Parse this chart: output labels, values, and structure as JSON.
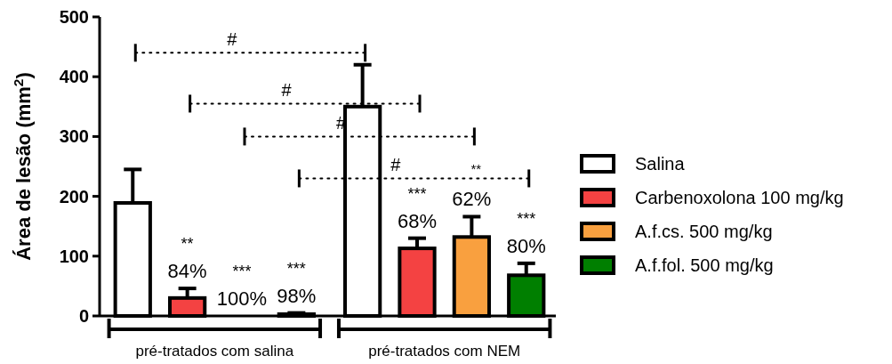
{
  "chart_data": {
    "type": "bar",
    "ylabel": "Área de lesão (mm$^{2}$)",
    "categories": [
      "pré-tratados com salina",
      "pré-tratados com NEM"
    ],
    "series": [
      {
        "name": "Salina",
        "color": "#ffffff",
        "values": [
          189,
          350
        ],
        "errors": [
          [
            189,
            245
          ],
          [
            350,
            420
          ]
        ]
      },
      {
        "name": "Carbenoxolona 100 mg/kg",
        "color": "#f44242",
        "values": [
          30,
          113
        ],
        "errors": [
          [
            30,
            46
          ],
          [
            113,
            130
          ]
        ]
      },
      {
        "name": "A.f.cs. 500 mg/kg",
        "color": "#f9a03f",
        "values": [
          0,
          132
        ],
        "errors": [
          null,
          [
            132,
            166
          ]
        ]
      },
      {
        "name": "A.f.fol. 500 mg/kg",
        "color": "#007f00",
        "values": [
          3,
          68
        ],
        "errors": [
          [
            3,
            5
          ],
          [
            68,
            88
          ]
        ]
      }
    ],
    "ylim": [
      0,
      500
    ],
    "yticks": [
      0,
      100,
      200,
      300,
      400,
      500
    ],
    "legend": "right",
    "grid": false,
    "annotations": [
      "#",
      "#",
      "#",
      "#",
      "**",
      "**\n84%",
      "***\n100%",
      "***\n98%",
      "***\n68%",
      "62%",
      "***\n80%"
    ]
  }
}
